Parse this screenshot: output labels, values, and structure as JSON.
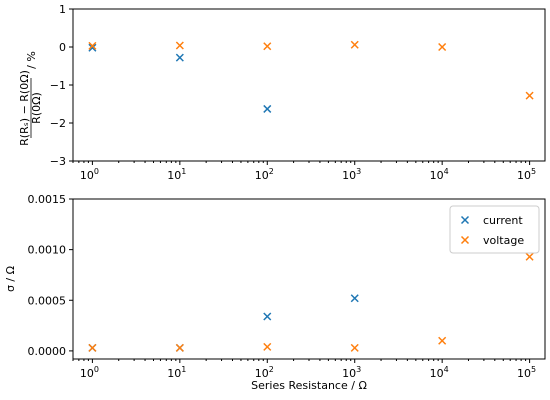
{
  "chart_data": [
    {
      "type": "scatter",
      "title": "",
      "xlabel": "",
      "ylabel_frac_top": "R(Rₛ) − R(0Ω)",
      "ylabel_frac_bottom": "R(0Ω)",
      "ylabel_suffix": "/ %",
      "xscale": "log",
      "xlim": [
        0.6,
        150000
      ],
      "ylim": [
        -3,
        1
      ],
      "yticks": [
        "1",
        "0",
        "−1",
        "−2",
        "−3"
      ],
      "ytick_values": [
        1,
        0,
        -1,
        -2,
        -3
      ],
      "xtick_values": [
        1,
        10,
        100,
        1000,
        10000,
        100000
      ],
      "xtick_exponents": [
        "0",
        "1",
        "2",
        "3",
        "4",
        "5"
      ],
      "grid": false,
      "series": [
        {
          "key": "current",
          "color": "#1f77b4",
          "x": [
            1,
            10,
            100
          ],
          "y": [
            -0.02,
            -0.28,
            -1.63
          ]
        },
        {
          "key": "voltage",
          "color": "#ff7f0e",
          "x": [
            1,
            10,
            100,
            1000,
            10000,
            100000
          ],
          "y": [
            0.03,
            0.04,
            0.02,
            0.06,
            0.0,
            -1.28
          ]
        }
      ]
    },
    {
      "type": "scatter",
      "title": "",
      "xlabel": "Series Resistance / Ω",
      "ylabel": "σ / Ω",
      "xscale": "log",
      "xlim": [
        0.6,
        150000
      ],
      "ylim": [
        -8e-05,
        0.0015
      ],
      "yticks": [
        "0.0000",
        "0.0005",
        "0.0010",
        "0.0015"
      ],
      "ytick_values": [
        0,
        0.0005,
        0.001,
        0.0015
      ],
      "xtick_values": [
        1,
        10,
        100,
        1000,
        10000,
        100000
      ],
      "xtick_exponents": [
        "0",
        "1",
        "2",
        "3",
        "4",
        "5"
      ],
      "grid": false,
      "legend_position": "top-right",
      "series": [
        {
          "name": "current",
          "color": "#1f77b4",
          "x": [
            1,
            10,
            100,
            1000
          ],
          "y": [
            3e-05,
            3e-05,
            0.00034,
            0.00052
          ]
        },
        {
          "name": "voltage",
          "color": "#ff7f0e",
          "x": [
            1,
            10,
            100,
            1000,
            10000,
            100000
          ],
          "y": [
            3e-05,
            3e-05,
            4e-05,
            3e-05,
            0.0001,
            0.00093
          ]
        }
      ]
    }
  ]
}
